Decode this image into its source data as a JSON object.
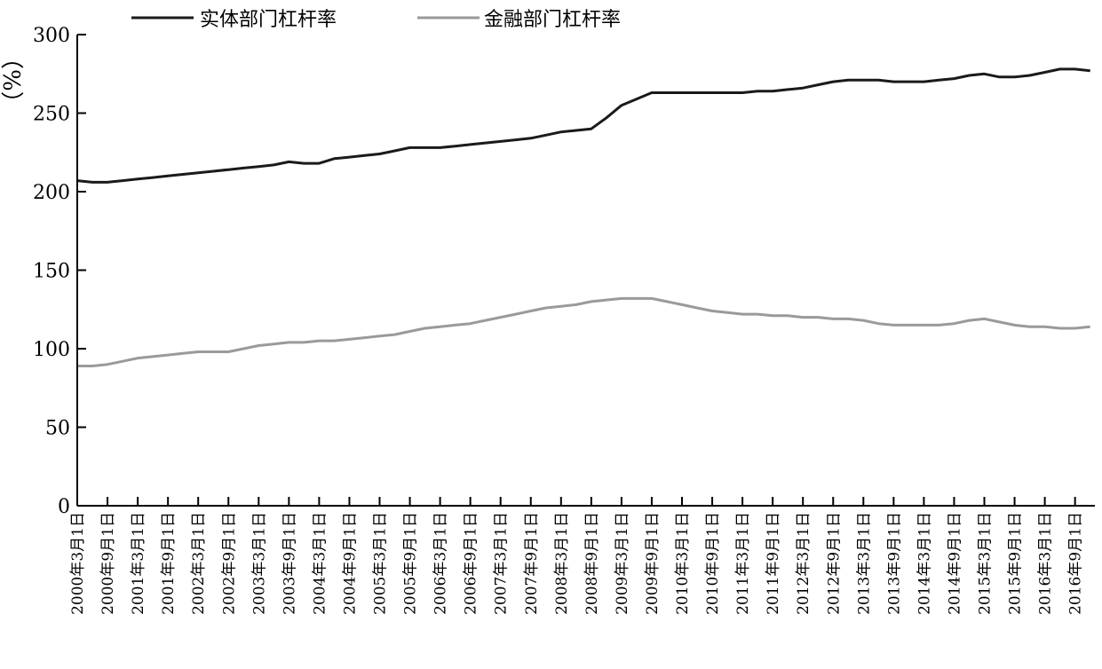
{
  "chart_data": {
    "type": "line",
    "ylabel": "（%）",
    "ylim": [
      0,
      300
    ],
    "yticks": [
      "0",
      "50",
      "100",
      "150",
      "200",
      "250",
      "300"
    ],
    "grid": false,
    "legend_position": "top",
    "x_tick_labels": [
      "2000年3月1日",
      "2000年9月1日",
      "2001年3月1日",
      "2001年9月1日",
      "2002年3月1日",
      "2002年9月1日",
      "2003年3月1日",
      "2003年9月1日",
      "2004年3月1日",
      "2004年9月1日",
      "2005年3月1日",
      "2005年9月1日",
      "2006年3月1日",
      "2006年9月1日",
      "2007年3月1日",
      "2007年9月1日",
      "2008年3月1日",
      "2008年9月1日",
      "2009年3月1日",
      "2009年9月1日",
      "2010年3月1日",
      "2010年9月1日",
      "2011年3月1日",
      "2011年9月1日",
      "2012年3月1日",
      "2012年9月1日",
      "2013年3月1日",
      "2013年9月1日",
      "2014年3月1日",
      "2014年9月1日",
      "2015年3月1日",
      "2015年9月1日",
      "2016年3月1日",
      "2016年9月1日"
    ],
    "x": [
      "2000-03",
      "2000-06",
      "2000-09",
      "2000-12",
      "2001-03",
      "2001-06",
      "2001-09",
      "2001-12",
      "2002-03",
      "2002-06",
      "2002-09",
      "2002-12",
      "2003-03",
      "2003-06",
      "2003-09",
      "2003-12",
      "2004-03",
      "2004-06",
      "2004-09",
      "2004-12",
      "2005-03",
      "2005-06",
      "2005-09",
      "2005-12",
      "2006-03",
      "2006-06",
      "2006-09",
      "2006-12",
      "2007-03",
      "2007-06",
      "2007-09",
      "2007-12",
      "2008-03",
      "2008-06",
      "2008-09",
      "2008-12",
      "2009-03",
      "2009-06",
      "2009-09",
      "2009-12",
      "2010-03",
      "2010-06",
      "2010-09",
      "2010-12",
      "2011-03",
      "2011-06",
      "2011-09",
      "2011-12",
      "2012-03",
      "2012-06",
      "2012-09",
      "2012-12",
      "2013-03",
      "2013-06",
      "2013-09",
      "2013-12",
      "2014-03",
      "2014-06",
      "2014-09",
      "2014-12",
      "2015-03",
      "2015-06",
      "2015-09",
      "2015-12",
      "2016-03",
      "2016-06",
      "2016-09",
      "2016-12"
    ],
    "series": [
      {
        "name": "实体部门杠杆率",
        "color": "#1a1a1a",
        "values": [
          207,
          206,
          206,
          207,
          208,
          209,
          210,
          211,
          212,
          213,
          214,
          215,
          216,
          217,
          219,
          218,
          218,
          221,
          222,
          223,
          224,
          226,
          228,
          228,
          228,
          229,
          230,
          231,
          232,
          233,
          234,
          236,
          238,
          239,
          240,
          247,
          255,
          259,
          263,
          263,
          263,
          263,
          263,
          263,
          263,
          264,
          264,
          265,
          266,
          268,
          270,
          271,
          271,
          271,
          270,
          270,
          270,
          271,
          272,
          274,
          275,
          273,
          273,
          274,
          276,
          278,
          278,
          277
        ]
      },
      {
        "name": "金融部门杠杆率",
        "color": "#9a9a9a",
        "values": [
          89,
          89,
          90,
          92,
          94,
          95,
          96,
          97,
          98,
          98,
          98,
          100,
          102,
          103,
          104,
          104,
          105,
          105,
          106,
          107,
          108,
          109,
          111,
          113,
          114,
          115,
          116,
          118,
          120,
          122,
          124,
          126,
          127,
          128,
          130,
          131,
          132,
          132,
          132,
          130,
          128,
          126,
          124,
          123,
          122,
          122,
          121,
          121,
          120,
          120,
          119,
          119,
          118,
          116,
          115,
          115,
          115,
          115,
          116,
          118,
          119,
          117,
          115,
          114,
          114,
          113,
          113,
          114
        ]
      }
    ]
  }
}
